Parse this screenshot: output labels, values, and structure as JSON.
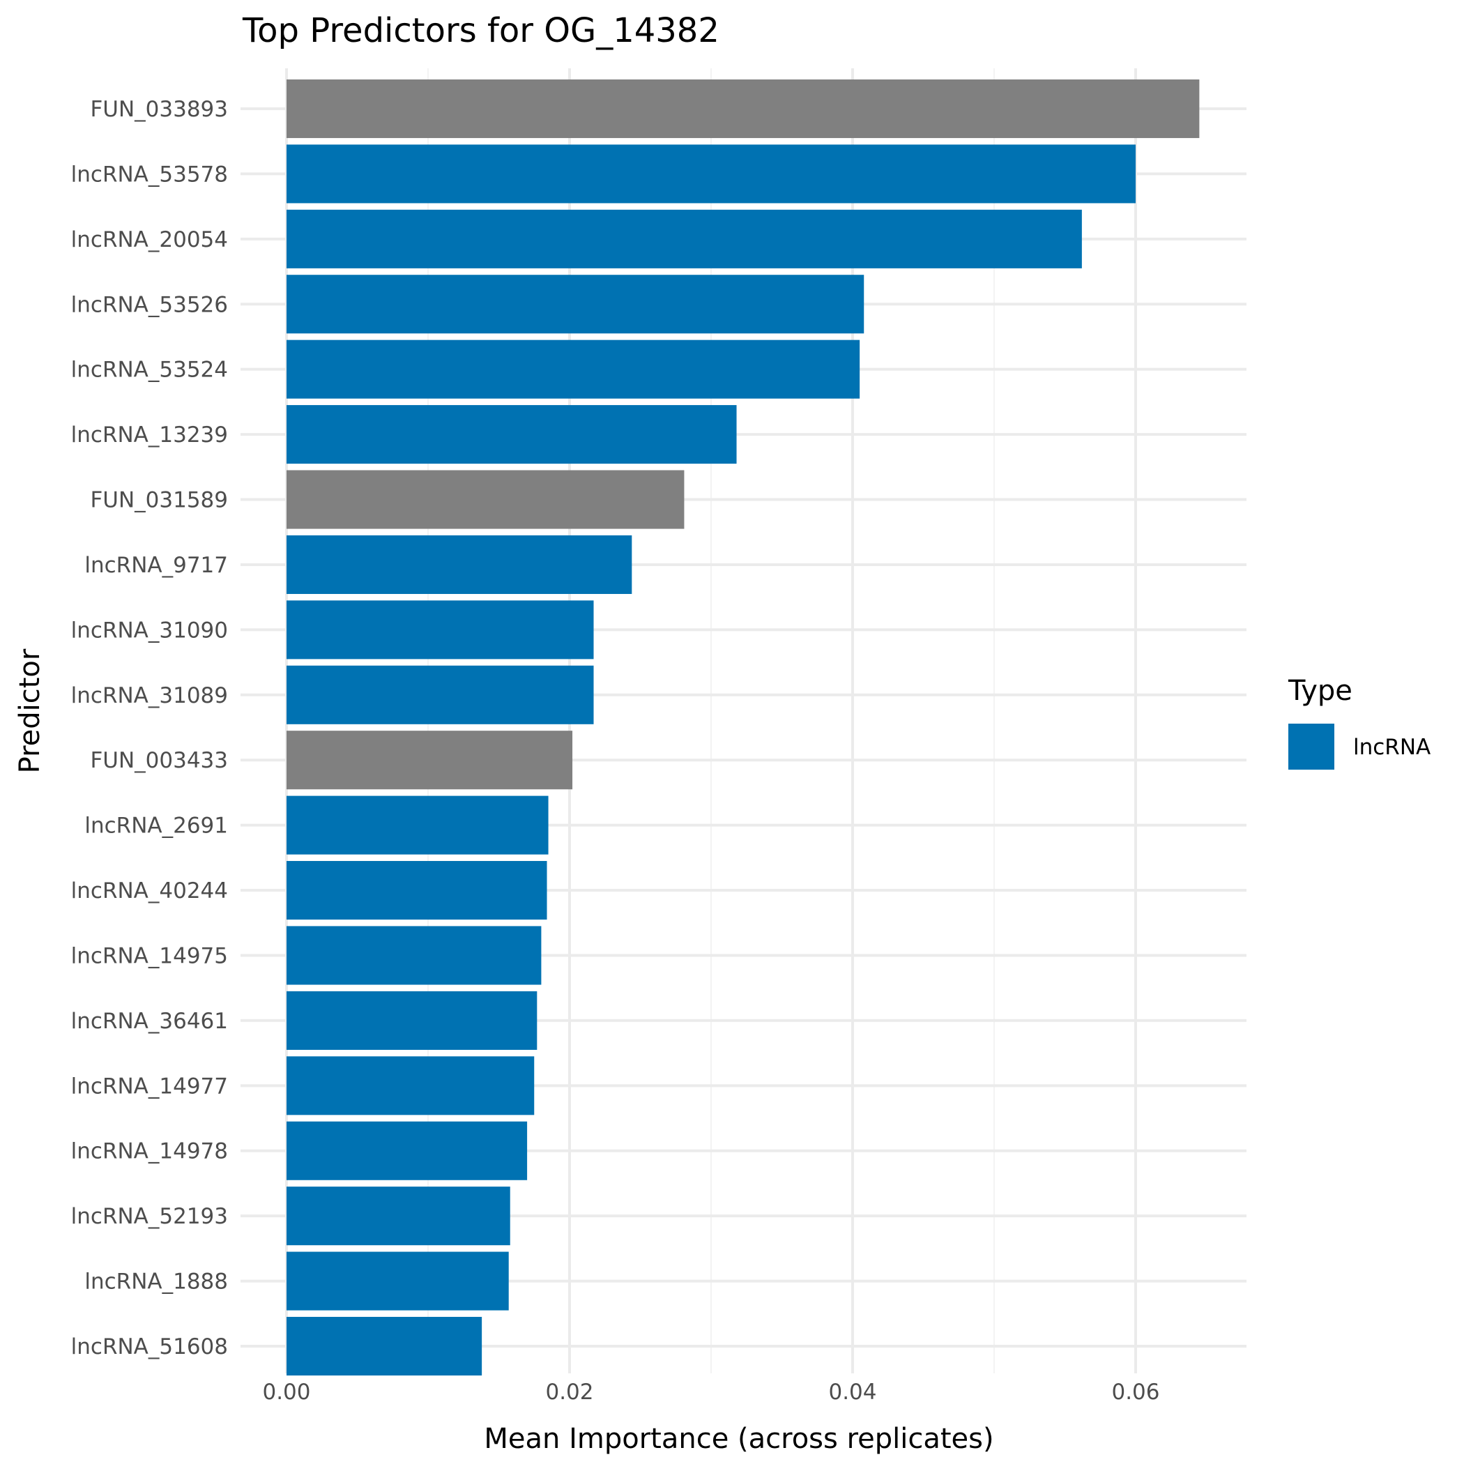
{
  "chart_data": {
    "type": "bar",
    "orientation": "horizontal",
    "title": "Top Predictors for OG_14382",
    "xlabel": "Mean Importance (across replicates)",
    "ylabel": "Predictor",
    "xlim": [
      0,
      0.0677
    ],
    "x_ticks": [
      "0.00",
      "0.02",
      "0.04",
      "0.06"
    ],
    "x_tick_values": [
      0,
      0.02,
      0.04,
      0.06
    ],
    "grid": true,
    "legend": {
      "title": "Type",
      "placement": "right",
      "entries": [
        {
          "label": "lncRNA",
          "color": "#0072B2"
        }
      ]
    },
    "colors": {
      "lncRNA": "#0072B2",
      "other": "#808080"
    },
    "categories": [
      "FUN_033893",
      "lncRNA_53578",
      "lncRNA_20054",
      "lncRNA_53526",
      "lncRNA_53524",
      "lncRNA_13239",
      "FUN_031589",
      "lncRNA_9717",
      "lncRNA_31090",
      "lncRNA_31089",
      "FUN_003433",
      "lncRNA_2691",
      "lncRNA_40244",
      "lncRNA_14975",
      "lncRNA_36461",
      "lncRNA_14977",
      "lncRNA_14978",
      "lncRNA_52193",
      "lncRNA_1888",
      "lncRNA_51608"
    ],
    "values": [
      0.0645,
      0.06,
      0.0562,
      0.0408,
      0.0405,
      0.0318,
      0.0281,
      0.0244,
      0.0217,
      0.0217,
      0.0202,
      0.0185,
      0.0184,
      0.018,
      0.0177,
      0.0175,
      0.017,
      0.0158,
      0.0157,
      0.0138
    ],
    "types": [
      "other",
      "lncRNA",
      "lncRNA",
      "lncRNA",
      "lncRNA",
      "lncRNA",
      "other",
      "lncRNA",
      "lncRNA",
      "lncRNA",
      "other",
      "lncRNA",
      "lncRNA",
      "lncRNA",
      "lncRNA",
      "lncRNA",
      "lncRNA",
      "lncRNA",
      "lncRNA",
      "lncRNA"
    ]
  }
}
